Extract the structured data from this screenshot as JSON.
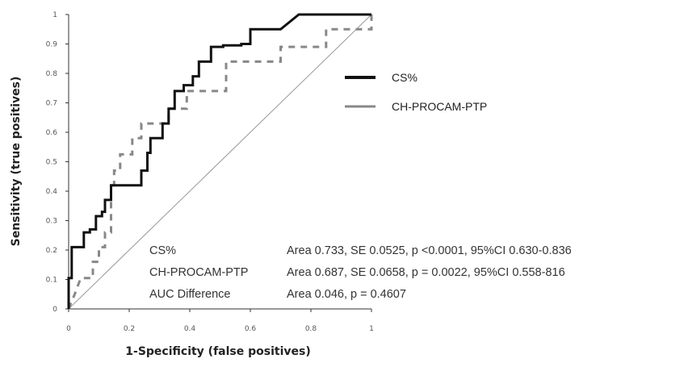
{
  "chart_data": {
    "type": "line",
    "title": "",
    "xlabel": "1-Specificity (false positives)",
    "ylabel": "Sensitivity (true positives)",
    "xlim": [
      0,
      1
    ],
    "ylim": [
      0,
      1
    ],
    "x_ticks": [
      "0",
      "0.2",
      "0.4",
      "0.6",
      "0.8",
      "1"
    ],
    "y_ticks": [
      "0",
      "0.1",
      "0.2",
      "0.3",
      "0.4",
      "0.5",
      "0.6",
      "0.7",
      "0.8",
      "0.9",
      "1"
    ],
    "grid": false,
    "legend_position": "right",
    "series": [
      {
        "name": "CS%",
        "color": "#111111",
        "style": "solid-thick",
        "points": [
          [
            0,
            0
          ],
          [
            0,
            0.105
          ],
          [
            0.01,
            0.105
          ],
          [
            0.01,
            0.21
          ],
          [
            0.05,
            0.21
          ],
          [
            0.05,
            0.26
          ],
          [
            0.07,
            0.26
          ],
          [
            0.07,
            0.27
          ],
          [
            0.09,
            0.27
          ],
          [
            0.09,
            0.315
          ],
          [
            0.11,
            0.315
          ],
          [
            0.11,
            0.33
          ],
          [
            0.12,
            0.33
          ],
          [
            0.12,
            0.37
          ],
          [
            0.14,
            0.37
          ],
          [
            0.14,
            0.42
          ],
          [
            0.24,
            0.42
          ],
          [
            0.24,
            0.47
          ],
          [
            0.26,
            0.47
          ],
          [
            0.26,
            0.53
          ],
          [
            0.27,
            0.53
          ],
          [
            0.27,
            0.58
          ],
          [
            0.31,
            0.58
          ],
          [
            0.31,
            0.63
          ],
          [
            0.33,
            0.63
          ],
          [
            0.33,
            0.68
          ],
          [
            0.35,
            0.68
          ],
          [
            0.35,
            0.74
          ],
          [
            0.38,
            0.74
          ],
          [
            0.38,
            0.76
          ],
          [
            0.41,
            0.76
          ],
          [
            0.41,
            0.79
          ],
          [
            0.43,
            0.79
          ],
          [
            0.43,
            0.84
          ],
          [
            0.47,
            0.84
          ],
          [
            0.47,
            0.89
          ],
          [
            0.51,
            0.89
          ],
          [
            0.51,
            0.895
          ],
          [
            0.57,
            0.895
          ],
          [
            0.57,
            0.9
          ],
          [
            0.6,
            0.9
          ],
          [
            0.6,
            0.95
          ],
          [
            0.65,
            0.95
          ],
          [
            0.7,
            0.95
          ],
          [
            0.76,
            1
          ],
          [
            1,
            1
          ]
        ]
      },
      {
        "name": "CH-PROCAM-PTP",
        "color": "#888888",
        "style": "dashed",
        "points": [
          [
            0,
            0
          ],
          [
            0.02,
            0.05
          ],
          [
            0.04,
            0.105
          ],
          [
            0.08,
            0.105
          ],
          [
            0.08,
            0.16
          ],
          [
            0.1,
            0.16
          ],
          [
            0.1,
            0.21
          ],
          [
            0.12,
            0.21
          ],
          [
            0.12,
            0.26
          ],
          [
            0.14,
            0.26
          ],
          [
            0.14,
            0.42
          ],
          [
            0.15,
            0.42
          ],
          [
            0.15,
            0.47
          ],
          [
            0.17,
            0.47
          ],
          [
            0.17,
            0.525
          ],
          [
            0.21,
            0.525
          ],
          [
            0.21,
            0.58
          ],
          [
            0.24,
            0.58
          ],
          [
            0.24,
            0.63
          ],
          [
            0.33,
            0.63
          ],
          [
            0.33,
            0.68
          ],
          [
            0.39,
            0.68
          ],
          [
            0.39,
            0.74
          ],
          [
            0.52,
            0.74
          ],
          [
            0.52,
            0.84
          ],
          [
            0.7,
            0.84
          ],
          [
            0.7,
            0.89
          ],
          [
            0.85,
            0.89
          ],
          [
            0.85,
            0.95
          ],
          [
            1,
            0.95
          ],
          [
            1,
            1
          ]
        ]
      },
      {
        "name": "",
        "color": "#999999",
        "style": "reference",
        "points": [
          [
            0,
            0
          ],
          [
            1,
            1
          ]
        ]
      }
    ],
    "annotations": [
      {
        "label": "CS%",
        "text": "Area 0.733, SE 0.0525, p <0.0001, 95%CI 0.630-0.836"
      },
      {
        "label": "CH-PROCAM-PTP",
        "text": "Area 0.687, SE 0.0658, p = 0.0022, 95%CI 0.558-816"
      },
      {
        "label": "AUC Difference",
        "text": "Area 0.046, p = 0.4607"
      }
    ]
  }
}
